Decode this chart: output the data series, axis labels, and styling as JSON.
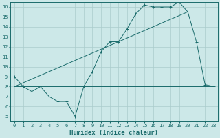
{
  "xlabel": "Humidex (Indice chaleur)",
  "xlim": [
    -0.5,
    23.5
  ],
  "ylim": [
    4.5,
    16.5
  ],
  "xticks": [
    0,
    1,
    2,
    3,
    4,
    5,
    6,
    7,
    8,
    9,
    10,
    11,
    12,
    13,
    14,
    15,
    16,
    17,
    18,
    19,
    20,
    21,
    22,
    23
  ],
  "yticks": [
    5,
    6,
    7,
    8,
    9,
    10,
    11,
    12,
    13,
    14,
    15,
    16
  ],
  "bg_color": "#cce8e8",
  "grid_color": "#aacccc",
  "line_color": "#1a6b6b",
  "line1_x": [
    0,
    1,
    2,
    3,
    4,
    5,
    6,
    7,
    8,
    9,
    10,
    11,
    12,
    13,
    14,
    15,
    16,
    17,
    18,
    19,
    20,
    21,
    22,
    23
  ],
  "line1_y": [
    9.0,
    8.0,
    7.5,
    8.0,
    7.0,
    6.5,
    6.5,
    5.0,
    8.0,
    9.5,
    11.5,
    12.5,
    12.5,
    13.8,
    15.3,
    16.2,
    16.0,
    16.0,
    16.0,
    16.5,
    15.5,
    12.5,
    8.2,
    8.0
  ],
  "line2_x": [
    0,
    23
  ],
  "line2_y": [
    8.0,
    8.0
  ],
  "line3_x": [
    0,
    20
  ],
  "line3_y": [
    8.0,
    15.5
  ],
  "fontsize_ticks": 5,
  "fontsize_label": 6.5
}
